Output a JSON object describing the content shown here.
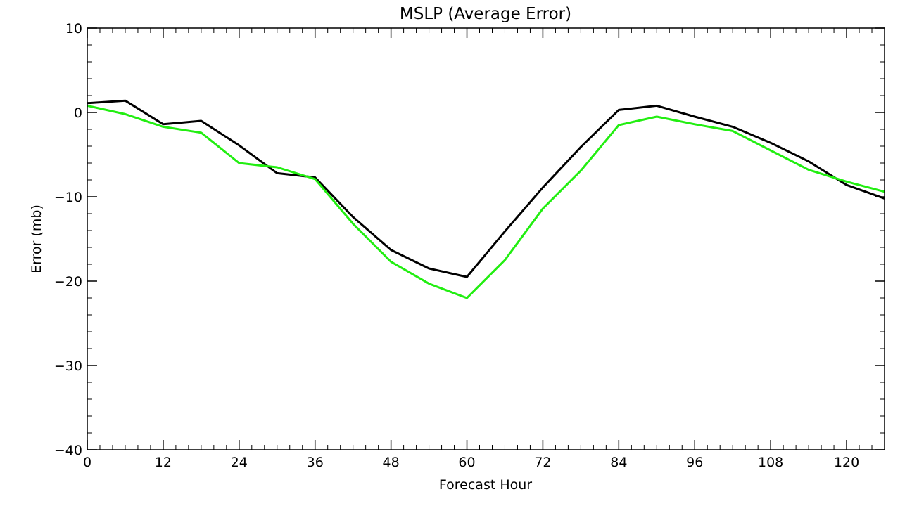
{
  "chart_data": {
    "type": "line",
    "title": "MSLP (Average Error)",
    "xlabel": "Forecast Hour",
    "ylabel": "Error (mb)",
    "xlim": [
      0,
      126
    ],
    "ylim": [
      -40,
      10
    ],
    "xticks": [
      0,
      12,
      24,
      36,
      48,
      60,
      72,
      84,
      96,
      108,
      120
    ],
    "xtick_labels": [
      "0",
      "12",
      "24",
      "36",
      "48",
      "60",
      "72",
      "84",
      "96",
      "108",
      "120"
    ],
    "yticks": [
      -40,
      -30,
      -20,
      -10,
      0,
      10
    ],
    "ytick_labels": [
      "−40",
      "−30",
      "−20",
      "−10",
      "0",
      "10"
    ],
    "x": [
      0,
      6,
      12,
      18,
      24,
      30,
      36,
      42,
      48,
      54,
      60,
      66,
      72,
      78,
      84,
      90,
      96,
      102,
      108,
      114,
      120,
      126
    ],
    "grid": false,
    "series": [
      {
        "color": "#000000",
        "values": [
          1.1,
          1.4,
          -1.4,
          -1.0,
          -3.9,
          -7.2,
          -7.7,
          -12.4,
          -16.3,
          -18.5,
          -19.5,
          -14.1,
          -8.9,
          -4.1,
          0.3,
          0.8,
          -0.5,
          -1.7,
          -3.6,
          -5.8,
          -8.6,
          -10.2
        ]
      },
      {
        "color": "#22ee11",
        "values": [
          0.8,
          -0.2,
          -1.7,
          -2.4,
          -6.0,
          -6.5,
          -7.9,
          -13.2,
          -17.7,
          -20.3,
          -22.0,
          -17.5,
          -11.4,
          -6.9,
          -1.5,
          -0.5,
          -1.4,
          -2.2,
          -4.5,
          -6.8,
          -8.2,
          -9.4
        ]
      }
    ]
  }
}
